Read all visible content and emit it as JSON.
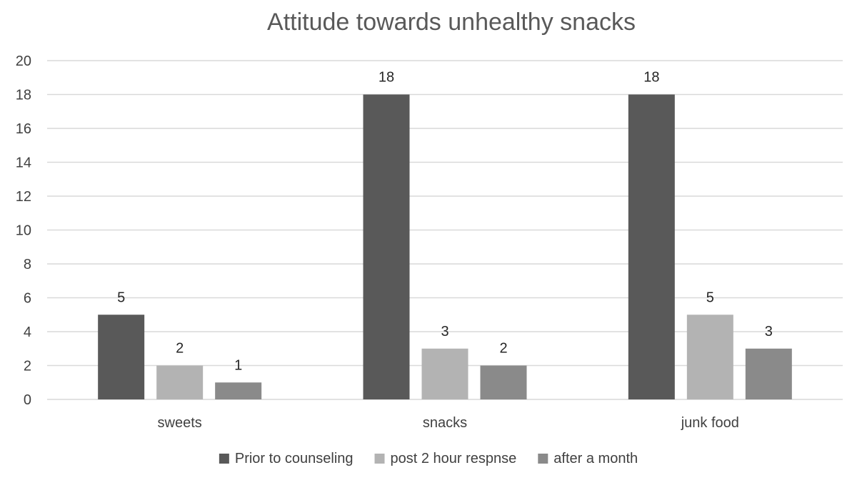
{
  "chart_data": {
    "type": "bar",
    "title": "Attitude towards unhealthy snacks",
    "xlabel": "",
    "ylabel": "",
    "categories": [
      "sweets",
      "snacks",
      "junk food"
    ],
    "series": [
      {
        "name": "Prior to counseling",
        "values": [
          5,
          18,
          18
        ],
        "color": "#595959"
      },
      {
        "name": "post  2 hour respnse",
        "values": [
          2,
          3,
          5
        ],
        "color": "#b3b3b3"
      },
      {
        "name": "after a month",
        "values": [
          1,
          2,
          3
        ],
        "color": "#8a8a8a"
      }
    ],
    "ylim": [
      0,
      20
    ],
    "yticks": [
      0,
      2,
      4,
      6,
      8,
      10,
      12,
      14,
      16,
      18,
      20
    ],
    "grid": true,
    "legend": "bottom",
    "data_labels": true
  }
}
